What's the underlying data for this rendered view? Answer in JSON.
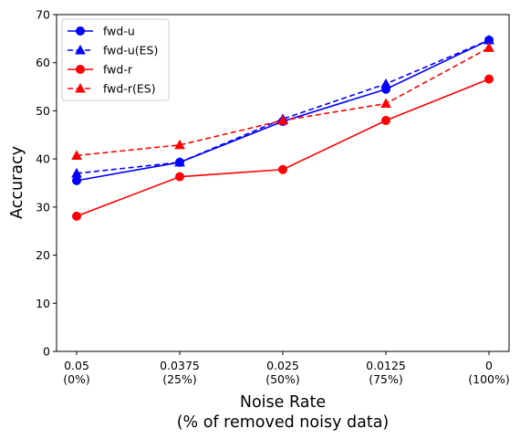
{
  "chart_data": {
    "type": "line",
    "xlabel_lines": [
      "Noise Rate",
      "(% of removed noisy data)"
    ],
    "ylabel": "Accuracy",
    "ylim": [
      0,
      70
    ],
    "yticks": [
      0,
      10,
      20,
      30,
      40,
      50,
      60,
      70
    ],
    "categories": [
      [
        "0.05",
        "(0%)"
      ],
      [
        "0.0375",
        "(25%)"
      ],
      [
        "0.025",
        "(50%)"
      ],
      [
        "0.0125",
        "(75%)"
      ],
      [
        "0",
        "(100%)"
      ]
    ],
    "legend_position": "upper-left",
    "series": [
      {
        "name": "fwd-u",
        "color": "#0000ff",
        "dash": "solid",
        "marker": "circle",
        "values": [
          35.5,
          39.3,
          47.8,
          54.5,
          64.7
        ]
      },
      {
        "name": "fwd-u(ES)",
        "color": "#0000ff",
        "dash": "dashed",
        "marker": "triangle",
        "values": [
          37.0,
          39.3,
          48.3,
          55.6,
          64.7
        ]
      },
      {
        "name": "fwd-r",
        "color": "#ff0000",
        "dash": "solid",
        "marker": "circle",
        "values": [
          28.1,
          36.3,
          37.8,
          48.0,
          56.6
        ]
      },
      {
        "name": "fwd-r(ES)",
        "color": "#ff0000",
        "dash": "dashed",
        "marker": "triangle",
        "values": [
          40.7,
          42.9,
          48.0,
          51.5,
          63.1
        ]
      }
    ]
  }
}
